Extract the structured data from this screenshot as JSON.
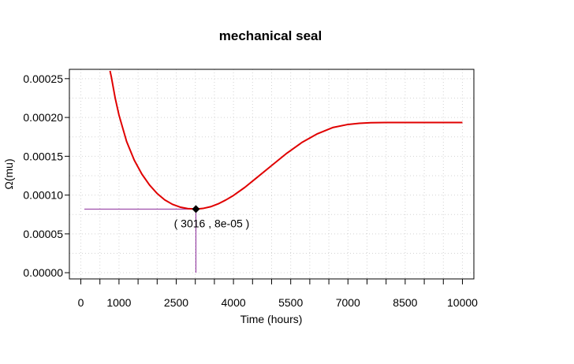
{
  "chart_data": {
    "type": "line",
    "title": "mechanical seal",
    "xlabel": "Time (hours)",
    "ylabel": "Ω(mu)",
    "xlim": [
      -300,
      10300
    ],
    "ylim": [
      -8e-06,
      0.000262
    ],
    "x_ticks_major": [
      0,
      1000,
      2500,
      4000,
      5500,
      7000,
      8500,
      10000
    ],
    "x_ticks_minor": [
      500,
      1500,
      2000,
      3000,
      3500,
      4500,
      5000,
      6000,
      6500,
      7500,
      8000,
      9000,
      9500
    ],
    "y_ticks": [
      0,
      5e-05,
      0.0001,
      0.00015,
      0.0002,
      0.00025
    ],
    "y_tick_labels": [
      "0.00000",
      "0.00005",
      "0.00010",
      "0.00015",
      "0.00020",
      "0.00025"
    ],
    "grid": true,
    "series": [
      {
        "color": "#e00000",
        "x": [
          765,
          800,
          900,
          1000,
          1200,
          1400,
          1600,
          1800,
          2000,
          2200,
          2400,
          2600,
          2800,
          3016,
          3200,
          3400,
          3600,
          3800,
          4000,
          4300,
          4600,
          5000,
          5400,
          5800,
          6200,
          6600,
          7000,
          7300,
          7600,
          7800,
          8000,
          8300,
          8600,
          9000,
          9500,
          10000
        ],
        "y": [
          0.00026,
          0.000252,
          0.000225,
          0.000203,
          0.000169,
          0.000145,
          0.000127,
          0.000113,
          0.000102,
          9.38e-05,
          8.81e-05,
          8.45e-05,
          8.26e-05,
          8.2e-05,
          8.28e-05,
          8.5e-05,
          8.87e-05,
          9.37e-05,
          9.95e-05,
          0.00011,
          0.000122,
          0.000138,
          0.000154,
          0.000168,
          0.000179,
          0.000187,
          0.000191,
          0.0001925,
          0.0001932,
          0.0001934,
          0.0001935,
          0.0001935,
          0.0001935,
          0.0001935,
          0.0001935,
          0.0001935
        ]
      }
    ],
    "marker": {
      "x": 3016,
      "y": 8.2e-05,
      "label": "( 3016 , 8e-05 )",
      "guide_color": "#8b2b9b"
    }
  }
}
